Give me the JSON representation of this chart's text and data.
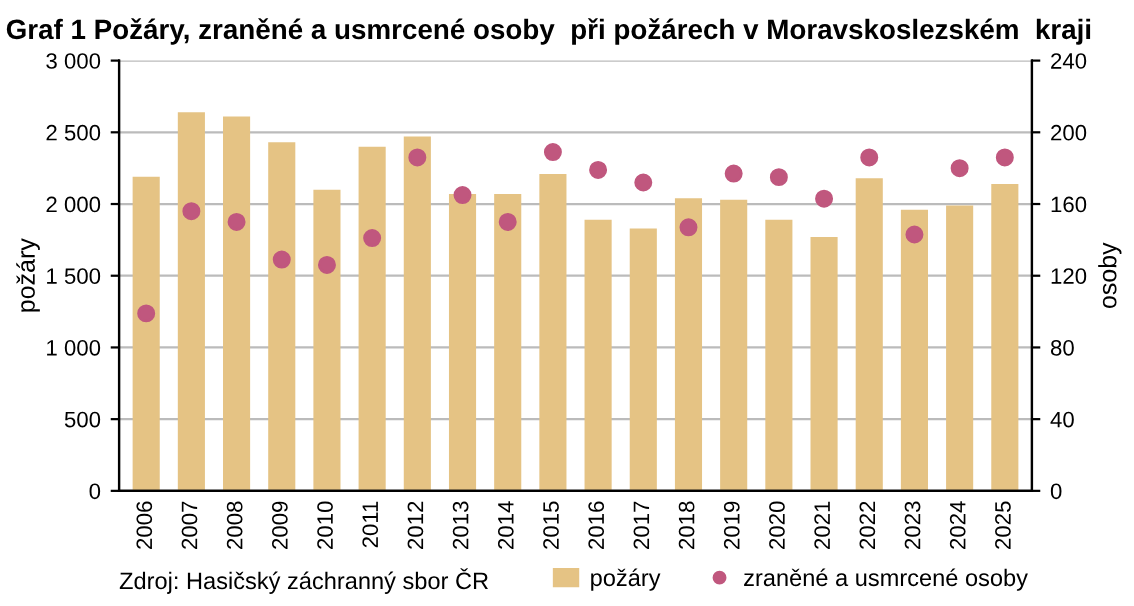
{
  "chart_data": {
    "type": "bar",
    "title": "Graf 1 Požáry, zraněné a usmrcené osoby  při požárech v Moravskoslezském  kraji",
    "categories": [
      "2006",
      "2007",
      "2008",
      "2009",
      "2010",
      "2011",
      "2012",
      "2013",
      "2014",
      "2015",
      "2016",
      "2017",
      "2018",
      "2019",
      "2020",
      "2021",
      "2022",
      "2023",
      "2024",
      "2025"
    ],
    "series": [
      {
        "name": "požáry",
        "color": "#e5c384",
        "values": [
          2190,
          2640,
          2610,
          2430,
          2100,
          2400,
          2470,
          2070,
          2070,
          2210,
          1890,
          1830,
          2040,
          2030,
          1890,
          1770,
          2180,
          1960,
          1990,
          2140
        ]
      },
      {
        "name": "zraněné a usmrcené osoby",
        "type": "scatter",
        "axis": "y2",
        "color": "#c0577e",
        "values": [
          99,
          156,
          150,
          129,
          126,
          141,
          186,
          165,
          150,
          189,
          179,
          172,
          147,
          177,
          175,
          163,
          186,
          143,
          180,
          186
        ]
      }
    ],
    "ylabel": "požáry",
    "y2label": "osoby",
    "ylim": [
      0,
      3000
    ],
    "yticks": [
      {
        "value": 0,
        "label": "0"
      },
      {
        "value": 500,
        "label": "500"
      },
      {
        "value": 1000,
        "label": "1 000"
      },
      {
        "value": 1500,
        "label": "1 500"
      },
      {
        "value": 2000,
        "label": "2 000"
      },
      {
        "value": 2500,
        "label": "2 500"
      },
      {
        "value": 3000,
        "label": "3 000"
      }
    ],
    "y2lim": [
      0,
      240
    ],
    "y2ticks": [
      0,
      40,
      80,
      120,
      160,
      200,
      240
    ],
    "grid": "y",
    "legend": "bottom",
    "marker": "circle",
    "annotations": [
      "Zdroj: Hasičský záchranný sbor ČR"
    ]
  }
}
